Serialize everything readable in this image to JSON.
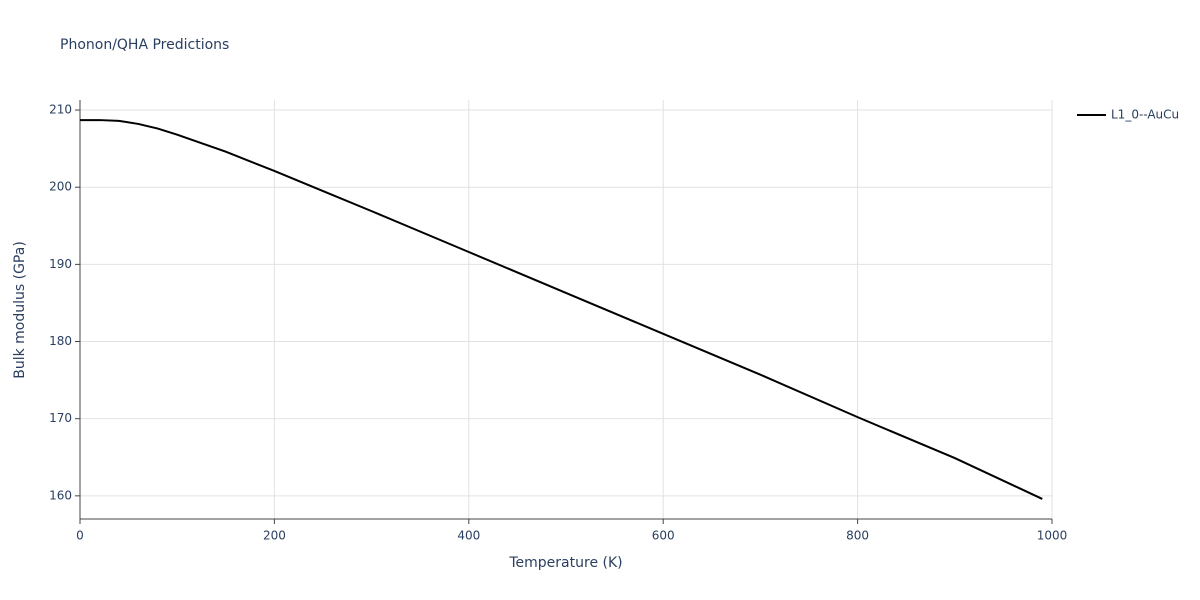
{
  "chart_data": {
    "type": "line",
    "title": "Phonon/QHA Predictions",
    "x_label": "Temperature (K)",
    "y_label": "Bulk modulus (GPa)",
    "x": [
      0,
      20,
      40,
      60,
      80,
      100,
      150,
      200,
      250,
      300,
      400,
      500,
      600,
      700,
      800,
      900,
      990
    ],
    "series": [
      {
        "name": "L1_0--AuCu",
        "color": "#000000",
        "values": [
          208.7,
          208.7,
          208.6,
          208.2,
          207.6,
          206.8,
          204.6,
          202.1,
          199.5,
          196.9,
          191.6,
          186.3,
          181.0,
          175.7,
          170.2,
          164.9,
          159.6
        ]
      }
    ],
    "xlim": [
      0,
      1000
    ],
    "xticks": [
      0,
      200,
      400,
      600,
      800,
      1000
    ],
    "ylim": [
      157,
      211.3
    ],
    "yticks": [
      160,
      170,
      180,
      190,
      200,
      210
    ],
    "grid": true,
    "legend": "right"
  }
}
